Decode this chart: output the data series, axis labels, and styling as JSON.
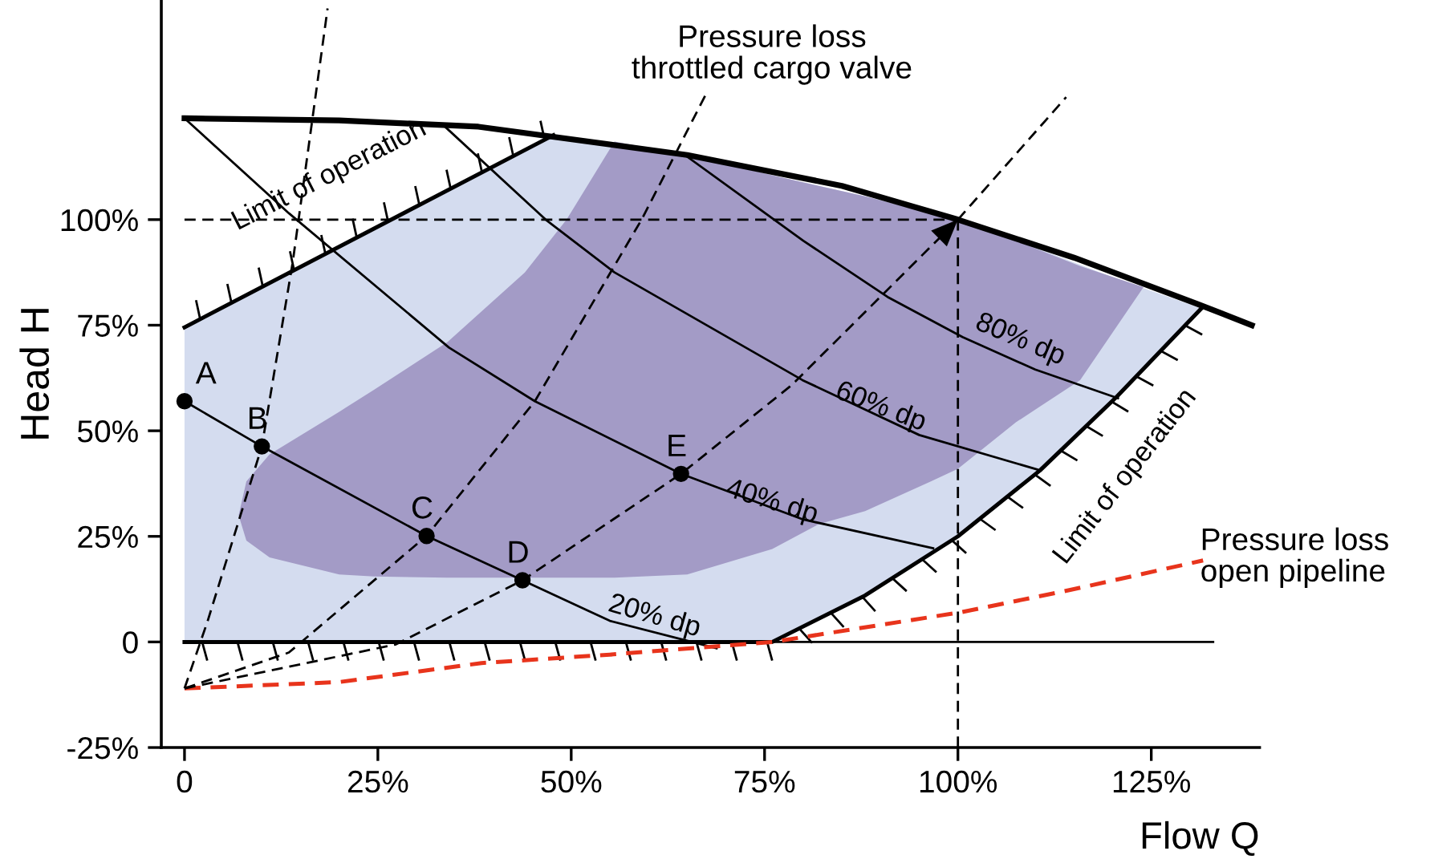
{
  "chart_data": {
    "type": "line",
    "xlabel": "Flow Q",
    "ylabel": "Head H",
    "xlim": [
      -3,
      139
    ],
    "ylim": [
      -25,
      152
    ],
    "xticks": [
      0,
      {
        "value": 25,
        "label": "25%"
      },
      {
        "value": 50,
        "label": "50%"
      },
      {
        "value": 75,
        "label": "75%"
      },
      {
        "value": 100,
        "label": "100%"
      },
      {
        "value": 125,
        "label": "125%"
      }
    ],
    "yticks": [
      {
        "value": -25,
        "label": "-25%"
      },
      0,
      {
        "value": 25,
        "label": "25%"
      },
      {
        "value": 50,
        "label": "50%"
      },
      {
        "value": 75,
        "label": "75%"
      },
      {
        "value": 100,
        "label": "100%"
      }
    ],
    "grid": false,
    "legend": false,
    "series": [
      {
        "color": "#d4dcef",
        "x": [
          0,
          10,
          20,
          30,
          40,
          47.7,
          65,
          76,
          88,
          100,
          110.6,
          120.5,
          131.5
        ],
        "values": [
          null,
          null,
          null,
          null,
          null,
          null,
          null,
          null,
          null,
          null,
          null,
          null,
          null
        ],
        "lower": [
          0,
          0,
          0,
          0,
          0,
          0,
          0,
          0,
          11,
          25,
          40.6,
          58,
          79
        ],
        "upper": [
          74.5,
          84,
          93.6,
          103.1,
          112.7,
          120,
          115.3,
          110.5,
          105.5,
          100,
          93,
          86,
          79
        ]
      },
      {
        "color": "#a39bc6",
        "x": [
          7,
          8,
          11,
          20,
          24.5,
          34,
          44,
          49.4,
          55.6,
          65,
          76,
          82,
          88,
          96.5,
          100,
          107.5,
          115.8,
          124
        ],
        "values": [
          null,
          null,
          null,
          null,
          null,
          null,
          null,
          null,
          null,
          null,
          null,
          null,
          null,
          null,
          null,
          null,
          null,
          null
        ],
        "lower": [
          30,
          24,
          20,
          16,
          15.5,
          15.2,
          15.2,
          15.2,
          15.2,
          16,
          22,
          27.9,
          31,
          38,
          41,
          52,
          62,
          84
        ],
        "upper": [
          30,
          38,
          44.4,
          54.5,
          59.7,
          71,
          87.5,
          100,
          118.5,
          115.3,
          110.5,
          108,
          105.5,
          101.5,
          100,
          95,
          89,
          84
        ]
      },
      {
        "color": "#000000",
        "line_style": "dashed",
        "x": [
          0,
          100
        ],
        "values": [
          100,
          100
        ]
      },
      {
        "color": "#000000",
        "line_style": "dashed",
        "x": [
          100,
          100
        ],
        "values": [
          -25,
          100
        ]
      },
      {
        "color": "#000000",
        "x": [
          76,
          133
        ],
        "values": [
          0,
          0
        ]
      },
      {
        "color": "#000000",
        "x": [
          0,
          10,
          31.3,
          43.7,
          55,
          68.8
        ],
        "values": [
          57,
          46.3,
          25.1,
          14.6,
          5,
          -1.5
        ]
      },
      {
        "color": "#000000",
        "x": [
          0,
          13.5,
          34.2,
          45.3,
          64.2,
          80,
          96.8
        ],
        "values": [
          124,
          101.5,
          69.7,
          57,
          39.8,
          29,
          22.2
        ]
      },
      {
        "color": "#000000",
        "x": [
          33.5,
          46.7,
          55.6,
          79.9,
          95,
          110.3
        ],
        "values": [
          122.3,
          100,
          87.5,
          62,
          49,
          40.8
        ]
      },
      {
        "color": "#000000",
        "x": [
          64.7,
          80,
          90.9,
          100.6,
          110,
          120.7
        ],
        "values": [
          115.3,
          95,
          81.7,
          72.2,
          64.5,
          57.7
        ]
      },
      {
        "color": "#000000",
        "x": [
          0,
          47.7
        ],
        "values": [
          74.5,
          120
        ]
      },
      {
        "color": "#000000",
        "x": [
          0,
          76,
          88,
          100,
          110.6,
          120.5,
          131.5
        ],
        "values": [
          0,
          0,
          11,
          25,
          40.6,
          58,
          79
        ]
      },
      {
        "color": "#000000",
        "x": [
          0,
          20,
          38,
          65,
          85,
          100,
          115,
          131,
          138
        ],
        "values": [
          124,
          123.5,
          122,
          115.3,
          108,
          100,
          91,
          80,
          75
        ]
      },
      {
        "color": "#e8341c",
        "line_style": "dashed",
        "x": [
          0,
          20,
          38.4,
          55,
          76,
          100.3,
          115,
          131.7
        ],
        "values": [
          -11,
          -9.5,
          -5,
          -3,
          0,
          7,
          12.5,
          19.3
        ]
      },
      {
        "color": "#000000",
        "line_style": "dashed",
        "x": [
          0,
          3,
          10,
          14,
          18.5
        ],
        "values": [
          -11,
          5,
          46.3,
          90,
          150
        ]
      },
      {
        "color": "#000000",
        "line_style": "dashed",
        "x": [
          0,
          13.5,
          31.3,
          45.3,
          59.1,
          63.6,
          67.5
        ],
        "values": [
          -11,
          -2.5,
          25.1,
          57,
          100,
          116,
          130
        ]
      },
      {
        "color": "#000000",
        "line_style": "dashed",
        "x": [
          0,
          27.3,
          43.7,
          64.2,
          78.5,
          100
        ],
        "values": [
          -11,
          -0.6,
          14.6,
          39.8,
          60.8,
          100
        ]
      },
      {
        "color": "#000000",
        "line_style": "dashed",
        "x": [
          100,
          114
        ],
        "values": [
          100,
          129
        ]
      },
      {
        "type": "scatter",
        "color": "#000000",
        "marker": "circle",
        "x": [
          0,
          10,
          31.3,
          43.7,
          64.2
        ],
        "values": [
          57,
          46.3,
          25.1,
          14.6,
          39.8
        ]
      }
    ],
    "annotations": [
      {
        "text": "A",
        "x": 0,
        "y": 57
      },
      {
        "text": "B",
        "x": 10,
        "y": 46.3
      },
      {
        "text": "C",
        "x": 31.3,
        "y": 25.1
      },
      {
        "text": "D",
        "x": 43.7,
        "y": 14.6
      },
      {
        "text": "E",
        "x": 64.2,
        "y": 39.8
      },
      "Limit of operation",
      "Limit of operation",
      "Pressure loss\nthrottled cargo valve",
      "Pressure loss\nopen pipeline",
      "80% dp",
      "60% dp",
      "40% dp",
      "20% dp"
    ]
  }
}
